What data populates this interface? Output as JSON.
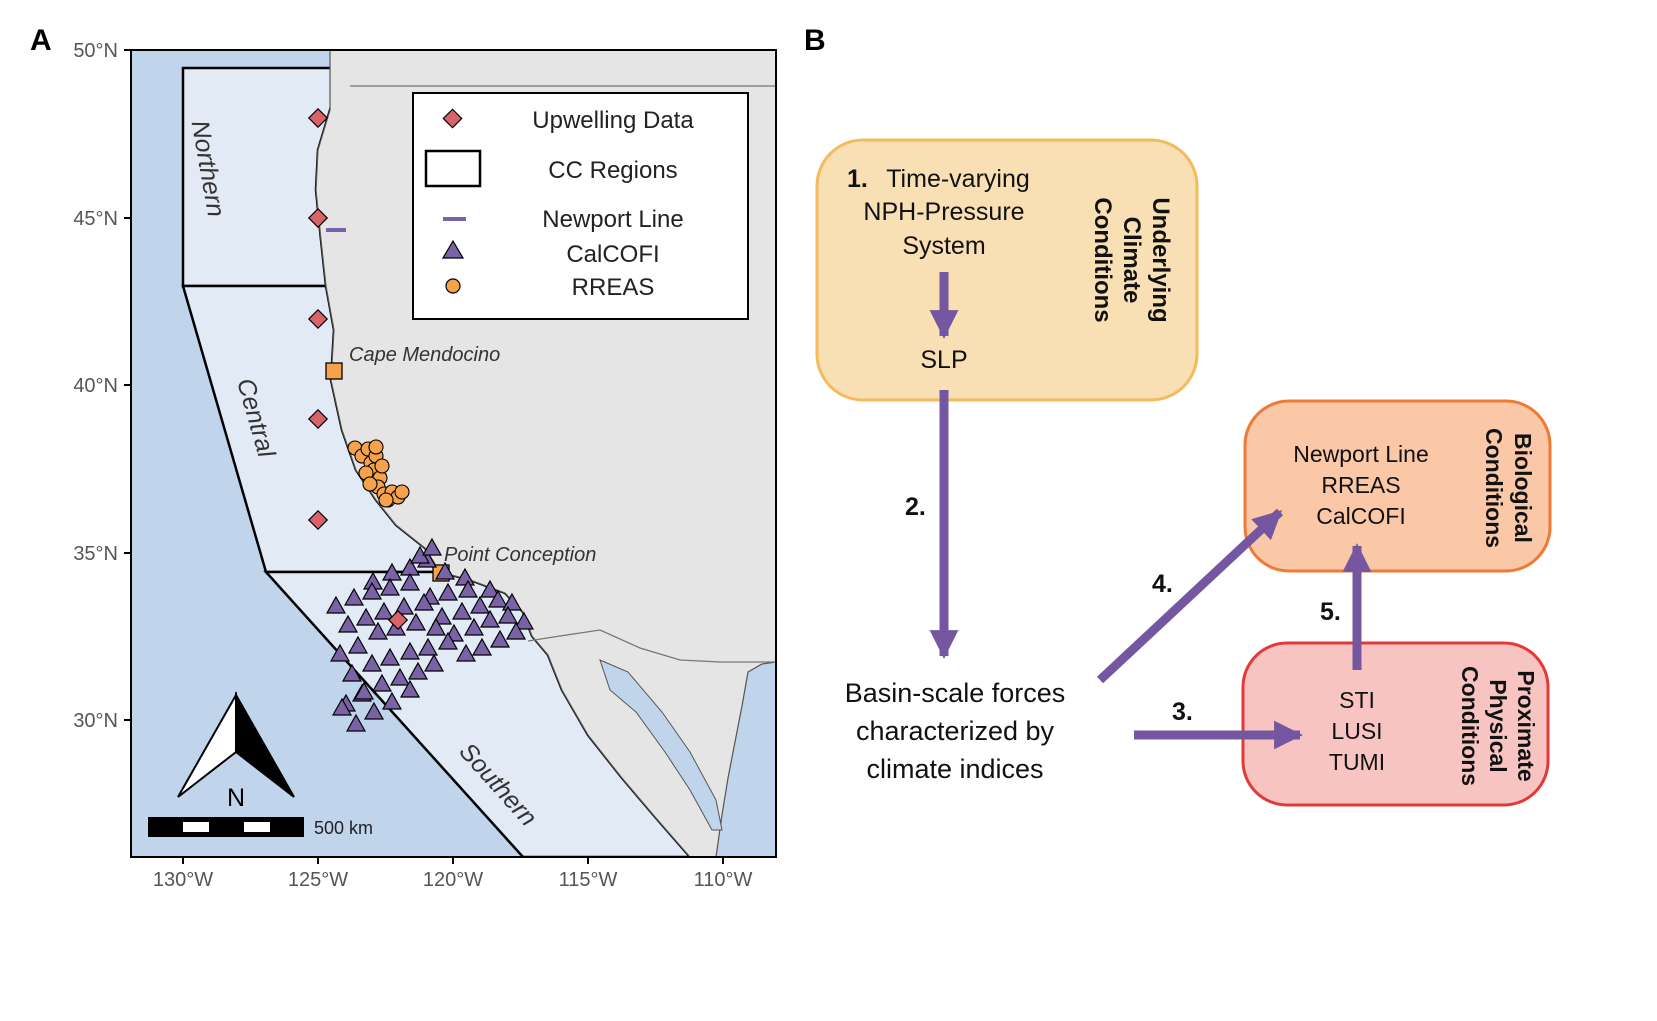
{
  "panel_a": {
    "label": "A",
    "lat_ticks": [
      "50°N",
      "45°N",
      "40°N",
      "35°N",
      "30°N"
    ],
    "lon_ticks": [
      "130°W",
      "125°W",
      "120°W",
      "115°W",
      "110°W"
    ],
    "regions": {
      "northern": "Northern",
      "central": "Central",
      "southern": "Southern"
    },
    "places": {
      "cape": "Cape Mendocino",
      "point": "Point Conception"
    },
    "legend": {
      "upwelling": "Upwelling Data",
      "regions": "CC Regions",
      "newport": "Newport Line",
      "calcofi": "CalCOFI",
      "rreas": "RREAS"
    },
    "north_label": "N",
    "scale_label": "500 km",
    "colors": {
      "ocean": "#c0d4ec",
      "region_fill": "#e2eaf6",
      "land": "#e5e5e5",
      "upwelling": "#d9636b",
      "calcofi": "#7a62a6",
      "rreas": "#f5a24b",
      "newport": "#7a62a6",
      "cape_marker": "#f5a24b"
    }
  },
  "panel_b": {
    "label": "B",
    "climate_box": {
      "step1_num": "1.",
      "step1_line1": "Time-varying",
      "step1_line2": "NPH-Pressure",
      "step1_line3": "System",
      "slp": "SLP",
      "side_line1": "Underlying",
      "side_line2": "Climate",
      "side_line3": "Conditions"
    },
    "basin": {
      "line1": "Basin-scale forces",
      "line2": "characterized by",
      "line3": "climate indices"
    },
    "bio_box": {
      "items": [
        "Newport Line",
        "RREAS",
        "CalCOFI"
      ],
      "side_line1": "Biological",
      "side_line2": "Conditions"
    },
    "phys_box": {
      "items": [
        "STI",
        "LUSI",
        "TUMI"
      ],
      "side_line1": "Proximate",
      "side_line2": "Physical",
      "side_line3": "Conditions"
    },
    "arrow_labels": {
      "a2": "2.",
      "a3": "3.",
      "a4": "4.",
      "a5": "5."
    },
    "colors": {
      "arrow": "#7457a0",
      "climate_fill": "#f9dfb4",
      "climate_stroke": "#f3bb5c",
      "bio_fill": "#fac7a7",
      "bio_stroke": "#ef7a35",
      "phys_fill": "#f7c4c2",
      "phys_stroke": "#e33a36"
    }
  }
}
